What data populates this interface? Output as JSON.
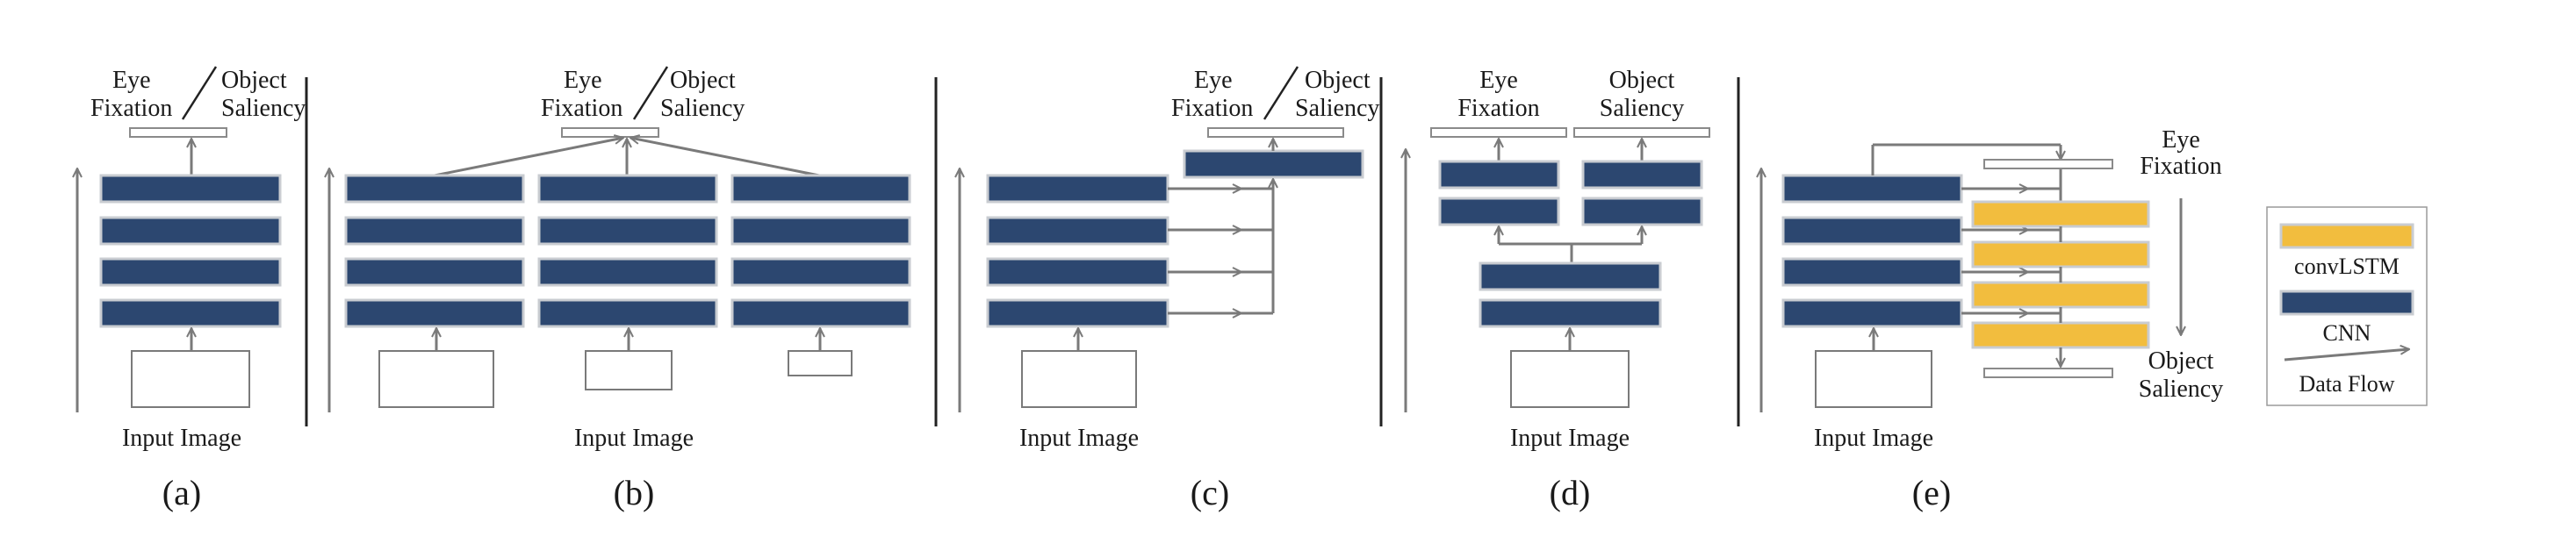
{
  "labels": {
    "eye_fixation": "Eye Fixation",
    "eye": "Eye",
    "fixation": "Fixation",
    "object": "Object",
    "saliency": "Saliency",
    "input_image": "Input Image"
  },
  "panels": {
    "a": "(a)",
    "b": "(b)",
    "c": "(c)",
    "d": "(d)",
    "e": "(e)"
  },
  "legend": {
    "convlstm": "convLSTM",
    "cnn": "CNN",
    "data_flow": "Data Flow"
  },
  "colors": {
    "cnn": "#2c4770",
    "convlstm": "#f2bd3e",
    "flow": "#7a7a7a"
  }
}
